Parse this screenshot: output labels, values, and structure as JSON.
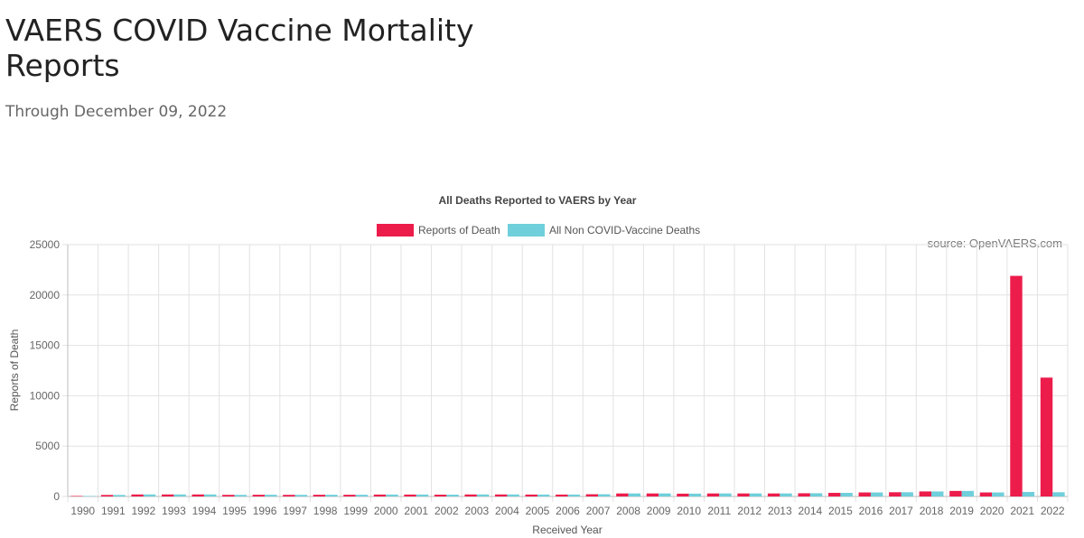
{
  "page": {
    "title": "VAERS COVID Vaccine Mortality Reports",
    "subtitle": "Through December 09, 2022"
  },
  "chart_data": {
    "type": "bar",
    "title": "All Deaths Reported to VAERS by Year",
    "xlabel": "Received Year",
    "ylabel": "Reports of Death",
    "ylim": [
      0,
      25000
    ],
    "yticks": [
      0,
      5000,
      10000,
      15000,
      20000,
      25000
    ],
    "grid": true,
    "legend_position": "top-center",
    "annotation": "source: OpenVAERS.com",
    "categories": [
      "1990",
      "1991",
      "1992",
      "1993",
      "1994",
      "1995",
      "1996",
      "1997",
      "1998",
      "1999",
      "2000",
      "2001",
      "2002",
      "2003",
      "2004",
      "2005",
      "2006",
      "2007",
      "2008",
      "2009",
      "2010",
      "2011",
      "2012",
      "2013",
      "2014",
      "2015",
      "2016",
      "2017",
      "2018",
      "2019",
      "2020",
      "2021",
      "2022"
    ],
    "series": [
      {
        "name": "Reports of Death",
        "color": "#ec1c4b",
        "values": [
          50,
          150,
          200,
          200,
          200,
          160,
          170,
          160,
          170,
          170,
          190,
          190,
          180,
          200,
          200,
          190,
          190,
          220,
          300,
          300,
          280,
          300,
          300,
          300,
          320,
          360,
          400,
          420,
          500,
          550,
          400,
          21900,
          11800
        ]
      },
      {
        "name": "All Non COVID-Vaccine Deaths",
        "color": "#6fcfdb",
        "values": [
          50,
          150,
          200,
          200,
          200,
          160,
          170,
          160,
          170,
          170,
          190,
          190,
          180,
          200,
          200,
          190,
          190,
          220,
          300,
          300,
          280,
          300,
          300,
          300,
          320,
          360,
          400,
          420,
          500,
          550,
          400,
          450,
          420
        ]
      }
    ]
  }
}
